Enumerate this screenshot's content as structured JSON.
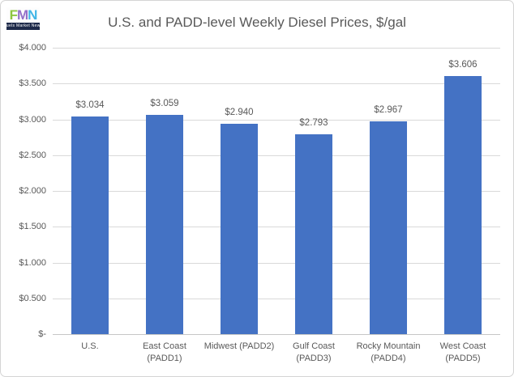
{
  "logo": {
    "letters": [
      {
        "char": "F",
        "color": "#8dc63f"
      },
      {
        "char": "M",
        "color": "#9471c9"
      },
      {
        "char": "N",
        "color": "#41b6e6"
      }
    ],
    "subtext": "Fuels Market News",
    "strip_color": "#1e2a4a"
  },
  "chart_data": {
    "type": "bar",
    "title": "U.S. and PADD-level Weekly Diesel Prices, $/gal",
    "categories": [
      "U.S.",
      "East Coast (PADD1)",
      "Midwest (PADD2)",
      "Gulf Coast (PADD3)",
      "Rocky Mountain (PADD4)",
      "West Coast (PADD5)"
    ],
    "category_lines": [
      [
        "U.S."
      ],
      [
        "East Coast",
        "(PADD1)"
      ],
      [
        "Midwest (PADD2)"
      ],
      [
        "Gulf Coast",
        "(PADD3)"
      ],
      [
        "Rocky Mountain",
        "(PADD4)"
      ],
      [
        "West Coast",
        "(PADD5)"
      ]
    ],
    "values": [
      3.034,
      3.059,
      2.94,
      2.793,
      2.967,
      3.606
    ],
    "data_labels": [
      "$3.034",
      "$3.059",
      "$2.940",
      "$2.793",
      "$2.967",
      "$3.606"
    ],
    "y_ticks": [
      "$4.000",
      "$3.500",
      "$3.000",
      "$2.500",
      "$2.000",
      "$1.500",
      "$1.000",
      "$0.500",
      "$-"
    ],
    "ylim": [
      0,
      4.0
    ],
    "xlabel": "",
    "ylabel": "",
    "bar_color": "#4472c4",
    "grid": true,
    "legend": "none",
    "text_color": "#595959",
    "gridline_color": "#d9d9d9"
  }
}
